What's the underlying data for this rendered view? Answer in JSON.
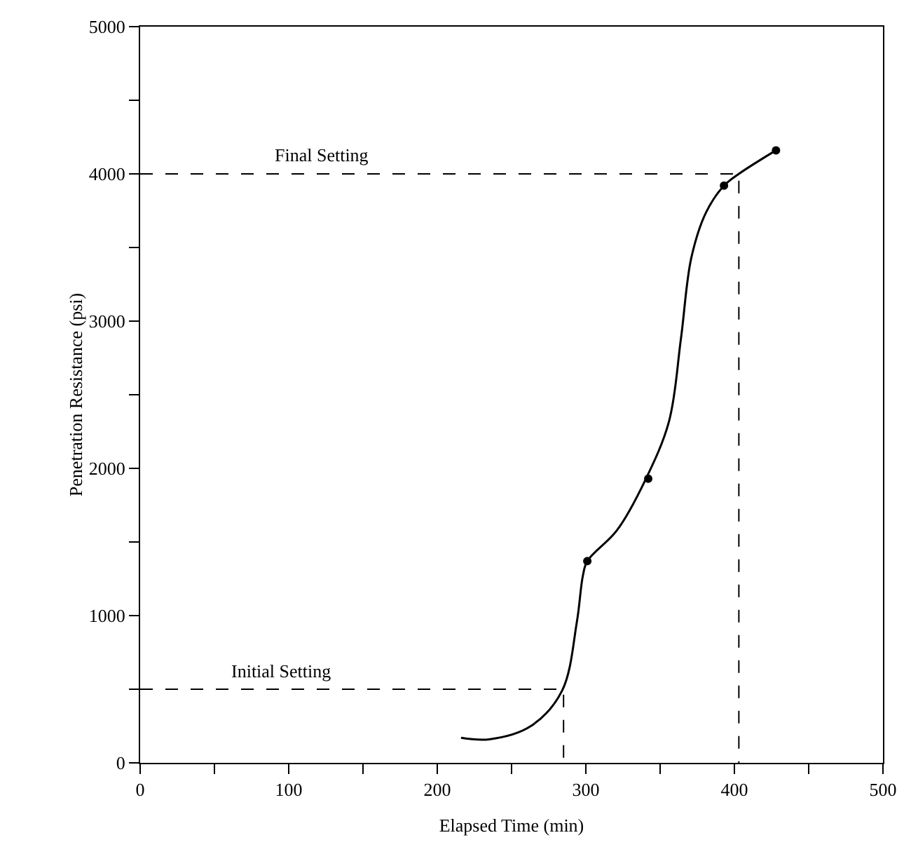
{
  "chart_data": {
    "type": "line",
    "xlabel": "Elapsed Time (min)",
    "ylabel": "Penetration Resistance (psi)",
    "xlim": [
      0,
      500
    ],
    "ylim": [
      0,
      5000
    ],
    "xticks": [
      0,
      {
        "value": 50,
        "label": null
      },
      100,
      {
        "value": 150,
        "label": null
      },
      200,
      {
        "value": 250,
        "label": null
      },
      300,
      {
        "value": 350,
        "label": null
      },
      400,
      {
        "value": 450,
        "label": null
      },
      500
    ],
    "yticks": [
      0,
      {
        "value": 500,
        "label": null
      },
      1000,
      {
        "value": 1500,
        "label": null
      },
      2000,
      {
        "value": 2500,
        "label": null
      },
      3000,
      {
        "value": 3500,
        "label": null
      },
      4000,
      {
        "value": 4500,
        "label": null
      },
      5000
    ],
    "grid": false,
    "series": [
      {
        "color": "#000000",
        "line_style": "solid",
        "marker": "none",
        "x": [
          216,
          235,
          263,
          284,
          294,
          298,
          301,
          321,
          340,
          356,
          364,
          371,
          381,
          393,
          403,
          428
        ],
        "values": [
          170,
          160,
          250,
          490,
          960,
          1270,
          1370,
          1580,
          1920,
          2320,
          2880,
          3430,
          3740,
          3920,
          4000,
          4160
        ]
      },
      {
        "type": "scatter",
        "color": "#000000",
        "marker": "circle",
        "x": [
          301,
          342,
          393,
          428
        ],
        "values": [
          1370,
          1930,
          3920,
          4160
        ]
      },
      {
        "color": "#000000",
        "line_style": "dashed",
        "marker": "none",
        "x": [
          0,
          285,
          285
        ],
        "values": [
          500,
          500,
          0
        ]
      },
      {
        "color": "#000000",
        "line_style": "dashed",
        "marker": "none",
        "x": [
          0,
          403,
          403
        ],
        "values": [
          4000,
          4000,
          0
        ]
      }
    ],
    "annotations": [
      {
        "text": "Initial Setting",
        "x": 95,
        "y": 500
      },
      {
        "text": "Final Setting",
        "x": 122,
        "y": 4000
      }
    ]
  }
}
